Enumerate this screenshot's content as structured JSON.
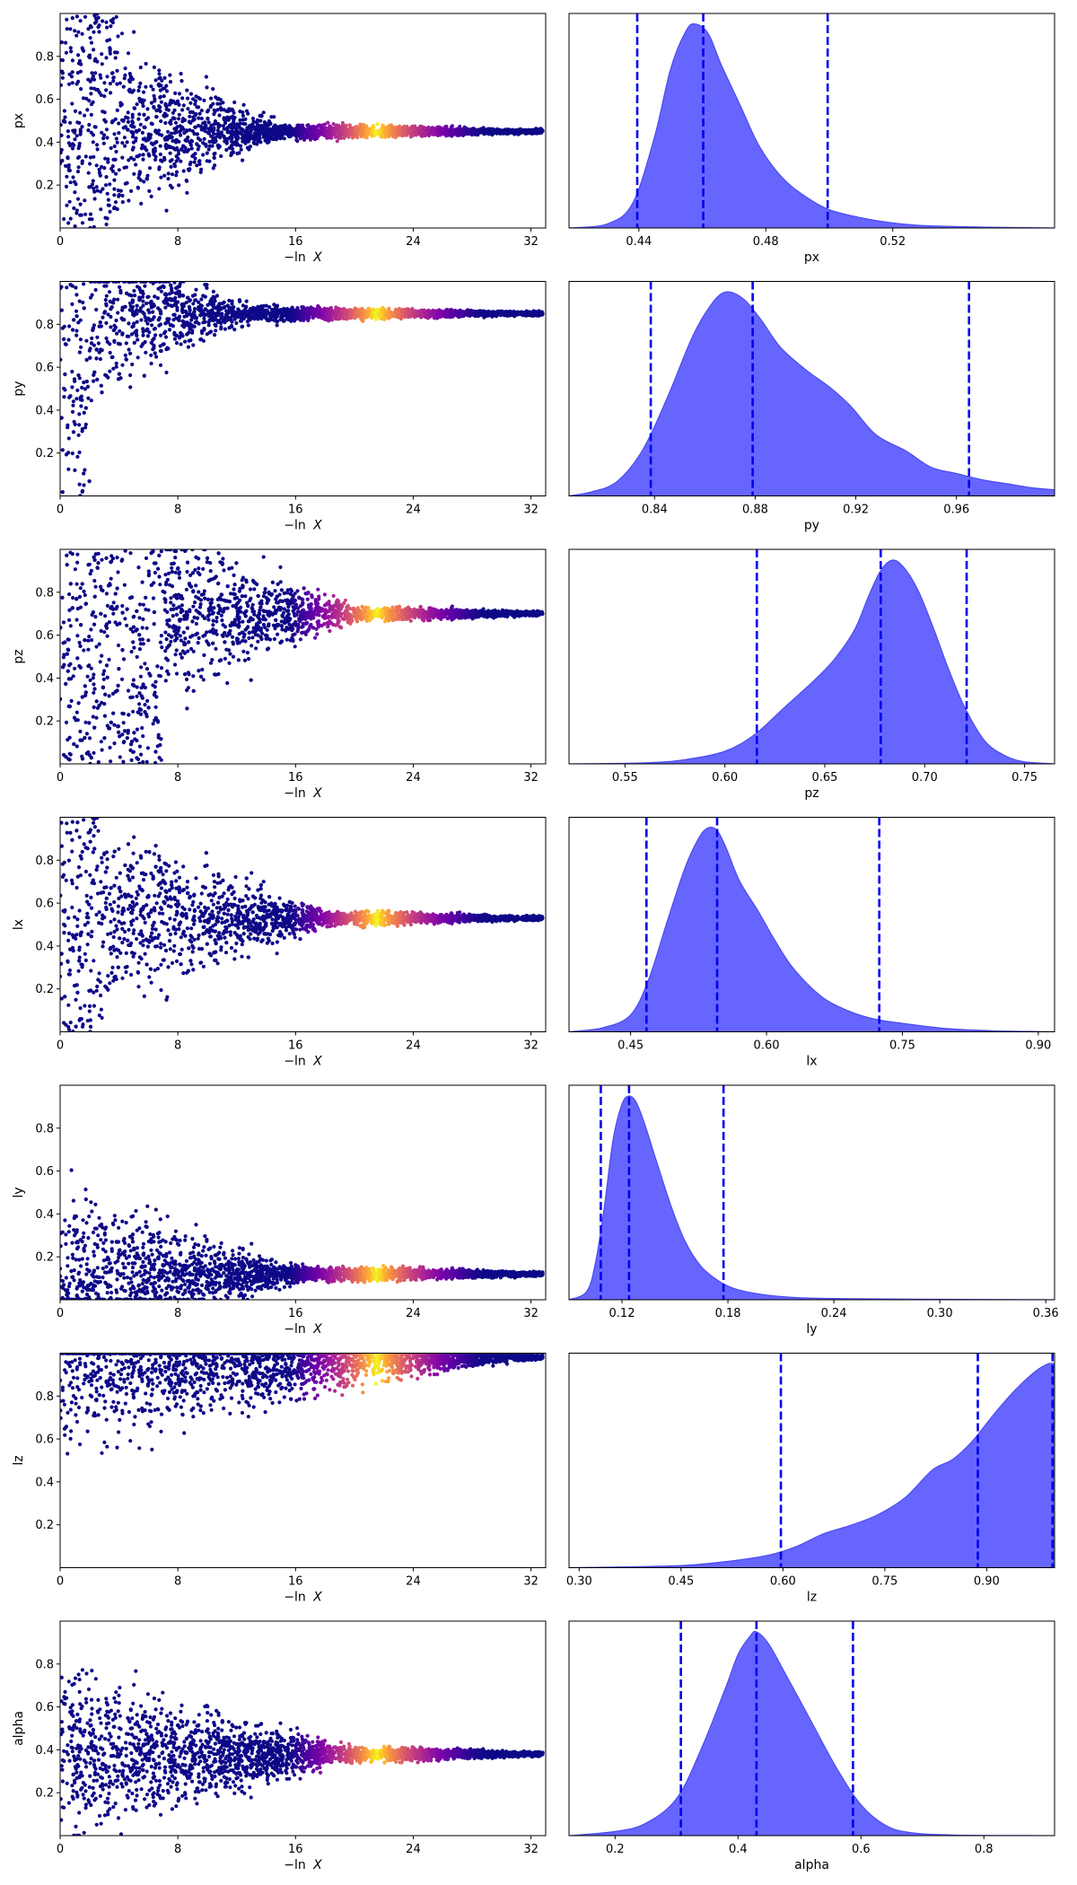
{
  "colors": {
    "kde_fill": "#6666ff",
    "kde_edge": "#4a4af0",
    "quantile_line": "#0000ee",
    "scatter_low": "#0d0887",
    "colormap": "plasma"
  },
  "chart_data": [
    {
      "name": "px",
      "ylabel": "px",
      "trace": {
        "type": "scatter",
        "xlabel_prefix": "−ln",
        "xlabel_var": "X",
        "x_ticks": [
          "0",
          "8",
          "16",
          "24",
          "32"
        ],
        "xlim": [
          0,
          33
        ],
        "y_ticks": [
          "0.2",
          "0.4",
          "0.6",
          "0.8"
        ],
        "ylim": [
          0,
          1
        ],
        "converge_y": 0.45,
        "spread_end": 16,
        "early_collapse": 4
      },
      "posterior": {
        "type": "area",
        "xlabel": "px",
        "x_ticks": [
          0.44,
          0.48,
          0.52
        ],
        "x_tick_labels": [
          "0.44",
          "0.48",
          "0.52"
        ],
        "xlim": [
          0.418,
          0.571
        ],
        "quantiles": [
          0.4395,
          0.4603,
          0.4995
        ],
        "density": [
          [
            0.418,
            0
          ],
          [
            0.43,
            0.02
          ],
          [
            0.438,
            0.12
          ],
          [
            0.445,
            0.45
          ],
          [
            0.45,
            0.78
          ],
          [
            0.455,
            0.97
          ],
          [
            0.458,
            1.0
          ],
          [
            0.462,
            0.95
          ],
          [
            0.466,
            0.8
          ],
          [
            0.472,
            0.6
          ],
          [
            0.478,
            0.4
          ],
          [
            0.485,
            0.25
          ],
          [
            0.492,
            0.16
          ],
          [
            0.5,
            0.09
          ],
          [
            0.51,
            0.05
          ],
          [
            0.52,
            0.025
          ],
          [
            0.53,
            0.012
          ],
          [
            0.55,
            0.004
          ],
          [
            0.571,
            0
          ]
        ]
      }
    },
    {
      "name": "py",
      "ylabel": "py",
      "trace": {
        "type": "scatter",
        "xlabel_prefix": "−ln",
        "xlabel_var": "X",
        "x_ticks": [
          "0",
          "8",
          "16",
          "24",
          "32"
        ],
        "xlim": [
          0,
          33
        ],
        "y_ticks": [
          "0.2",
          "0.4",
          "0.6",
          "0.8"
        ],
        "ylim": [
          0,
          1
        ],
        "converge_y": 0.85,
        "spread_end": 14,
        "early_collapse": 2
      },
      "posterior": {
        "type": "area",
        "xlabel": "py",
        "x_ticks": [
          0.84,
          0.88,
          0.92,
          0.96
        ],
        "x_tick_labels": [
          "0.84",
          "0.88",
          "0.92",
          "0.96"
        ],
        "xlim": [
          0.806,
          0.999
        ],
        "quantiles": [
          0.8385,
          0.879,
          0.965
        ],
        "density": [
          [
            0.806,
            0
          ],
          [
            0.815,
            0.02
          ],
          [
            0.825,
            0.07
          ],
          [
            0.835,
            0.22
          ],
          [
            0.845,
            0.48
          ],
          [
            0.855,
            0.78
          ],
          [
            0.862,
            0.93
          ],
          [
            0.868,
            1.0
          ],
          [
            0.875,
            0.97
          ],
          [
            0.882,
            0.87
          ],
          [
            0.89,
            0.73
          ],
          [
            0.9,
            0.62
          ],
          [
            0.91,
            0.53
          ],
          [
            0.918,
            0.44
          ],
          [
            0.928,
            0.3
          ],
          [
            0.94,
            0.22
          ],
          [
            0.95,
            0.14
          ],
          [
            0.96,
            0.11
          ],
          [
            0.97,
            0.08
          ],
          [
            0.98,
            0.06
          ],
          [
            0.99,
            0.04
          ],
          [
            0.999,
            0.03
          ]
        ]
      }
    },
    {
      "name": "pz",
      "ylabel": "pz",
      "trace": {
        "type": "scatter",
        "xlabel_prefix": "−ln",
        "xlabel_var": "X",
        "x_ticks": [
          "0",
          "8",
          "16",
          "24",
          "32"
        ],
        "xlim": [
          0,
          33
        ],
        "y_ticks": [
          "0.2",
          "0.4",
          "0.6",
          "0.8"
        ],
        "ylim": [
          0,
          1
        ],
        "converge_y": 0.7,
        "spread_end": 22,
        "early_collapse": 7
      },
      "posterior": {
        "type": "area",
        "xlabel": "pz",
        "x_ticks": [
          0.55,
          0.6,
          0.65,
          0.7,
          0.75
        ],
        "x_tick_labels": [
          "0.55",
          "0.60",
          "0.65",
          "0.70",
          "0.75"
        ],
        "xlim": [
          0.522,
          0.765
        ],
        "quantiles": [
          0.616,
          0.678,
          0.721
        ],
        "density": [
          [
            0.522,
            0
          ],
          [
            0.56,
            0.005
          ],
          [
            0.58,
            0.02
          ],
          [
            0.6,
            0.06
          ],
          [
            0.615,
            0.14
          ],
          [
            0.63,
            0.27
          ],
          [
            0.645,
            0.4
          ],
          [
            0.655,
            0.5
          ],
          [
            0.665,
            0.64
          ],
          [
            0.672,
            0.8
          ],
          [
            0.678,
            0.92
          ],
          [
            0.684,
            0.97
          ],
          [
            0.69,
            0.93
          ],
          [
            0.697,
            0.82
          ],
          [
            0.705,
            0.63
          ],
          [
            0.712,
            0.45
          ],
          [
            0.72,
            0.27
          ],
          [
            0.73,
            0.11
          ],
          [
            0.74,
            0.04
          ],
          [
            0.75,
            0.01
          ],
          [
            0.765,
            0
          ]
        ]
      }
    },
    {
      "name": "lx",
      "ylabel": "lx",
      "trace": {
        "type": "scatter",
        "xlabel_prefix": "−ln",
        "xlabel_var": "X",
        "x_ticks": [
          "0",
          "8",
          "16",
          "24",
          "32"
        ],
        "xlim": [
          0,
          33
        ],
        "y_ticks": [
          "0.2",
          "0.4",
          "0.6",
          "0.8"
        ],
        "ylim": [
          0,
          1
        ],
        "converge_y": 0.53,
        "spread_end": 20,
        "early_collapse": 3
      },
      "posterior": {
        "type": "area",
        "xlabel": "lx",
        "x_ticks": [
          0.45,
          0.6,
          0.75,
          0.9
        ],
        "x_tick_labels": [
          "0.45",
          "0.60",
          "0.75",
          "0.90"
        ],
        "xlim": [
          0.382,
          0.918
        ],
        "quantiles": [
          0.4675,
          0.5455,
          0.7245
        ],
        "density": [
          [
            0.382,
            0
          ],
          [
            0.42,
            0.02
          ],
          [
            0.45,
            0.08
          ],
          [
            0.47,
            0.25
          ],
          [
            0.49,
            0.52
          ],
          [
            0.51,
            0.78
          ],
          [
            0.525,
            0.92
          ],
          [
            0.535,
            0.97
          ],
          [
            0.545,
            0.96
          ],
          [
            0.555,
            0.88
          ],
          [
            0.57,
            0.72
          ],
          [
            0.59,
            0.58
          ],
          [
            0.61,
            0.43
          ],
          [
            0.63,
            0.3
          ],
          [
            0.66,
            0.17
          ],
          [
            0.69,
            0.1
          ],
          [
            0.72,
            0.06
          ],
          [
            0.76,
            0.035
          ],
          [
            0.8,
            0.015
          ],
          [
            0.85,
            0.005
          ],
          [
            0.918,
            0
          ]
        ]
      }
    },
    {
      "name": "ly",
      "ylabel": "ly",
      "trace": {
        "type": "scatter",
        "xlabel_prefix": "−ln",
        "xlabel_var": "X",
        "x_ticks": [
          "0",
          "8",
          "16",
          "24",
          "32"
        ],
        "xlim": [
          0,
          33
        ],
        "y_ticks": [
          "0.2",
          "0.4",
          "0.6",
          "0.8"
        ],
        "ylim": [
          0,
          1
        ],
        "converge_y": 0.12,
        "spread_end": 18,
        "early_collapse": 0
      },
      "posterior": {
        "type": "area",
        "xlabel": "ly",
        "x_ticks": [
          0.12,
          0.18,
          0.24,
          0.3,
          0.36
        ],
        "x_tick_labels": [
          "0.12",
          "0.18",
          "0.24",
          "0.30",
          "0.36"
        ],
        "xlim": [
          0.09,
          0.365
        ],
        "quantiles": [
          0.108,
          0.124,
          0.1775
        ],
        "density": [
          [
            0.09,
            0
          ],
          [
            0.1,
            0.04
          ],
          [
            0.105,
            0.18
          ],
          [
            0.11,
            0.45
          ],
          [
            0.115,
            0.78
          ],
          [
            0.12,
            0.95
          ],
          [
            0.124,
            0.99
          ],
          [
            0.128,
            0.96
          ],
          [
            0.133,
            0.85
          ],
          [
            0.14,
            0.66
          ],
          [
            0.148,
            0.45
          ],
          [
            0.156,
            0.28
          ],
          [
            0.165,
            0.16
          ],
          [
            0.175,
            0.09
          ],
          [
            0.185,
            0.05
          ],
          [
            0.2,
            0.025
          ],
          [
            0.22,
            0.01
          ],
          [
            0.25,
            0.005
          ],
          [
            0.3,
            0.002
          ],
          [
            0.365,
            0
          ]
        ]
      }
    },
    {
      "name": "lz",
      "ylabel": "lz",
      "trace": {
        "type": "scatter",
        "xlabel_prefix": "−ln",
        "xlabel_var": "X",
        "x_ticks": [
          "0",
          "8",
          "16",
          "24",
          "32"
        ],
        "xlim": [
          0,
          33
        ],
        "y_ticks": [
          "0.2",
          "0.4",
          "0.6",
          "0.8"
        ],
        "ylim": [
          0,
          1
        ],
        "converge_y": 0.98,
        "spread_end": 33,
        "early_collapse": 0
      },
      "posterior": {
        "type": "area",
        "xlabel": "lz",
        "x_ticks": [
          0.3,
          0.45,
          0.6,
          0.75,
          0.9
        ],
        "x_tick_labels": [
          "0.30",
          "0.45",
          "0.60",
          "0.75",
          "0.90"
        ],
        "xlim": [
          0.285,
          1.0
        ],
        "quantiles": [
          0.597,
          0.887,
          0.997
        ],
        "density": [
          [
            0.285,
            0
          ],
          [
            0.35,
            0.003
          ],
          [
            0.45,
            0.01
          ],
          [
            0.52,
            0.03
          ],
          [
            0.58,
            0.06
          ],
          [
            0.62,
            0.1
          ],
          [
            0.66,
            0.16
          ],
          [
            0.7,
            0.2
          ],
          [
            0.74,
            0.25
          ],
          [
            0.78,
            0.33
          ],
          [
            0.82,
            0.46
          ],
          [
            0.85,
            0.51
          ],
          [
            0.88,
            0.6
          ],
          [
            0.91,
            0.72
          ],
          [
            0.94,
            0.83
          ],
          [
            0.97,
            0.92
          ],
          [
            0.99,
            0.96
          ],
          [
            1.0,
            0.96
          ]
        ]
      }
    },
    {
      "name": "alpha",
      "ylabel": "alpha",
      "trace": {
        "type": "scatter",
        "xlabel_prefix": "−ln",
        "xlabel_var": "X",
        "x_ticks": [
          "0",
          "8",
          "16",
          "24",
          "32"
        ],
        "xlim": [
          0,
          33
        ],
        "y_ticks": [
          "0.2",
          "0.4",
          "0.6",
          "0.8"
        ],
        "ylim": [
          0,
          1
        ],
        "converge_y": 0.38,
        "spread_end": 22,
        "early_collapse": 0
      },
      "posterior": {
        "type": "area",
        "xlabel": "alpha",
        "x_ticks": [
          0.2,
          0.4,
          0.6,
          0.8
        ],
        "x_tick_labels": [
          "0.2",
          "0.4",
          "0.6",
          "0.8"
        ],
        "xlim": [
          0.125,
          0.915
        ],
        "quantiles": [
          0.307,
          0.43,
          0.587
        ],
        "density": [
          [
            0.125,
            0
          ],
          [
            0.2,
            0.02
          ],
          [
            0.25,
            0.06
          ],
          [
            0.3,
            0.18
          ],
          [
            0.34,
            0.42
          ],
          [
            0.38,
            0.72
          ],
          [
            0.4,
            0.88
          ],
          [
            0.42,
            0.97
          ],
          [
            0.43,
            0.99
          ],
          [
            0.45,
            0.93
          ],
          [
            0.48,
            0.77
          ],
          [
            0.52,
            0.55
          ],
          [
            0.56,
            0.33
          ],
          [
            0.6,
            0.15
          ],
          [
            0.64,
            0.05
          ],
          [
            0.68,
            0.015
          ],
          [
            0.75,
            0.003
          ],
          [
            0.915,
            0
          ]
        ]
      }
    }
  ]
}
